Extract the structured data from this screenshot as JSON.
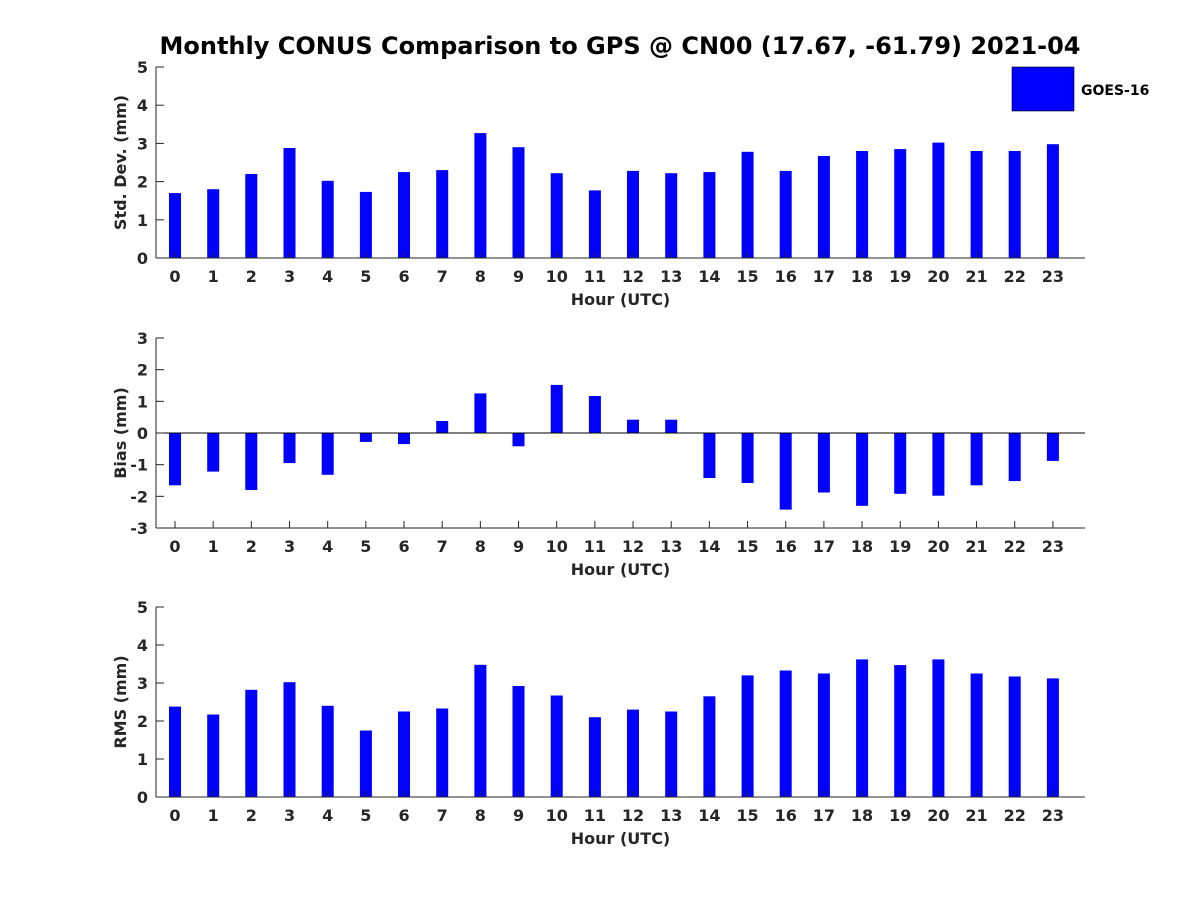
{
  "chart_data": {
    "type": "bar",
    "title": "Monthly CONUS Comparison to GPS @ CN00 (17.67, -61.79) 2021-04",
    "legend": {
      "label": "GOES-16",
      "placement": "top-right"
    },
    "color": "#0000ff",
    "xlabel": "Hour (UTC)",
    "categories": [
      "0",
      "1",
      "2",
      "3",
      "4",
      "5",
      "6",
      "7",
      "8",
      "9",
      "10",
      "11",
      "12",
      "13",
      "14",
      "15",
      "16",
      "17",
      "18",
      "19",
      "20",
      "21",
      "22",
      "23"
    ],
    "panels": [
      {
        "id": "std",
        "ylabel": "Std. Dev. (mm)",
        "ylim": [
          0,
          5
        ],
        "yticks": [
          "0",
          "1",
          "2",
          "3",
          "4",
          "5"
        ],
        "values": [
          1.7,
          1.8,
          2.2,
          2.88,
          2.02,
          1.73,
          2.25,
          2.3,
          3.27,
          2.9,
          2.22,
          1.77,
          2.28,
          2.22,
          2.25,
          2.78,
          2.28,
          2.67,
          2.8,
          2.85,
          3.02,
          2.8,
          2.8,
          2.98
        ]
      },
      {
        "id": "bias",
        "ylabel": "Bias (mm)",
        "ylim": [
          -3,
          3
        ],
        "yticks": [
          "-3",
          "-2",
          "-1",
          "0",
          "1",
          "2",
          "3"
        ],
        "values": [
          -1.65,
          -1.22,
          -1.8,
          -0.95,
          -1.32,
          -0.28,
          -0.35,
          0.38,
          1.25,
          -0.42,
          1.52,
          1.17,
          0.42,
          0.42,
          -1.42,
          -1.58,
          -2.42,
          -1.88,
          -2.3,
          -1.92,
          -1.98,
          -1.65,
          -1.52,
          -0.88
        ]
      },
      {
        "id": "rms",
        "ylabel": "RMS (mm)",
        "ylim": [
          0,
          5
        ],
        "yticks": [
          "0",
          "1",
          "2",
          "3",
          "4",
          "5"
        ],
        "values": [
          2.38,
          2.17,
          2.82,
          3.02,
          2.4,
          1.75,
          2.25,
          2.33,
          3.48,
          2.92,
          2.67,
          2.1,
          2.3,
          2.25,
          2.65,
          3.2,
          3.33,
          3.25,
          3.62,
          3.47,
          3.62,
          3.25,
          3.17,
          3.12
        ]
      }
    ]
  }
}
